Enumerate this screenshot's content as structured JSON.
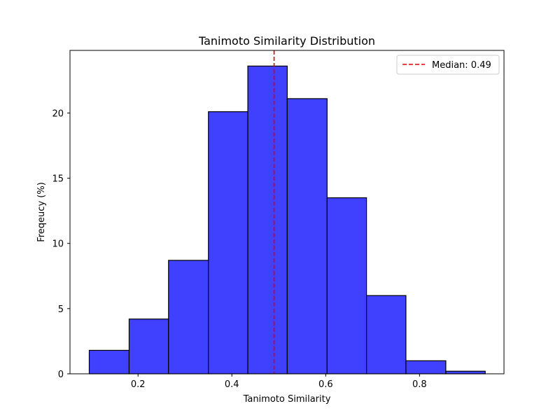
{
  "chart_data": {
    "type": "bar",
    "title": "Tanimoto Similarity Distribution",
    "xlabel": "Tanimoto Similarity",
    "ylabel": "Freqeucy (%)",
    "xlim": [
      0.055,
      0.98
    ],
    "ylim": [
      0,
      24.8
    ],
    "xticks": [
      {
        "value": 0.2,
        "label": "0.2"
      },
      {
        "value": 0.4,
        "label": "0.4"
      },
      {
        "value": 0.6,
        "label": "0.6"
      },
      {
        "value": 0.8,
        "label": "0.8"
      }
    ],
    "yticks": [
      {
        "value": 0,
        "label": "0"
      },
      {
        "value": 5,
        "label": "5"
      },
      {
        "value": 10,
        "label": "10"
      },
      {
        "value": 15,
        "label": "15"
      },
      {
        "value": 20,
        "label": "20"
      }
    ],
    "bins": [
      {
        "x0": 0.096,
        "x1": 0.181,
        "value": 1.8
      },
      {
        "x0": 0.181,
        "x1": 0.265,
        "value": 4.2
      },
      {
        "x0": 0.265,
        "x1": 0.35,
        "value": 8.7
      },
      {
        "x0": 0.35,
        "x1": 0.434,
        "value": 20.1
      },
      {
        "x0": 0.434,
        "x1": 0.518,
        "value": 23.6
      },
      {
        "x0": 0.518,
        "x1": 0.603,
        "value": 21.1
      },
      {
        "x0": 0.603,
        "x1": 0.687,
        "value": 13.5
      },
      {
        "x0": 0.687,
        "x1": 0.771,
        "value": 6.0
      },
      {
        "x0": 0.771,
        "x1": 0.856,
        "value": 1.0
      },
      {
        "x0": 0.856,
        "x1": 0.94,
        "value": 0.2
      }
    ],
    "median": {
      "value": 0.49,
      "label": "Median: 0.49"
    },
    "legend": {
      "placement": "top-right",
      "entries": [
        "Median: 0.49"
      ]
    },
    "grid": false,
    "colors": {
      "bar_fill": "#4040ff",
      "bar_edge": "#000000",
      "median_line": "#dd0000"
    }
  }
}
